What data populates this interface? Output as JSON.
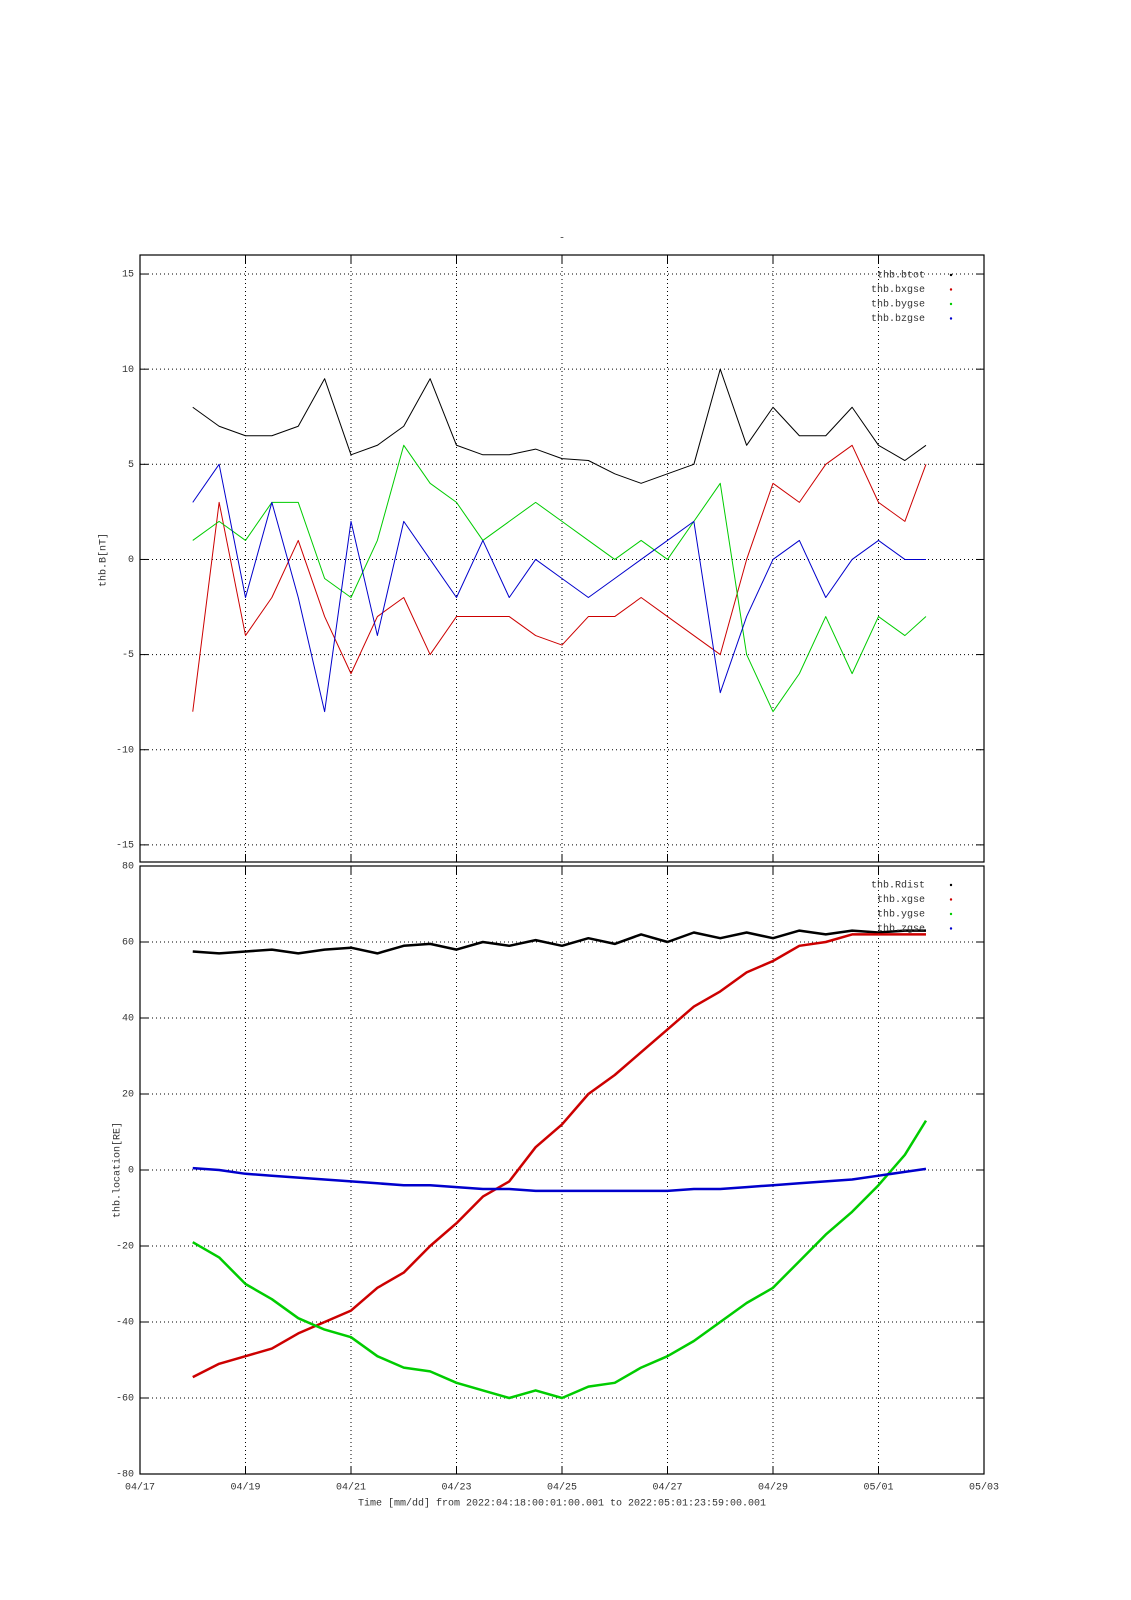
{
  "chart_data": [
    {
      "type": "line",
      "title": "-",
      "y_label": "thb.B[nT]",
      "x": [
        1,
        1.5,
        2,
        2.5,
        3,
        3.5,
        4,
        4.5,
        5,
        5.5,
        6,
        6.5,
        7,
        7.5,
        8,
        8.5,
        9,
        9.5,
        10,
        10.5,
        11,
        11.5,
        12,
        12.5,
        13,
        13.5,
        14,
        14.5,
        14.9
      ],
      "xlim": [
        0,
        16
      ],
      "xticks": [
        0,
        2,
        4,
        6,
        8,
        10,
        12,
        14,
        16
      ],
      "ylim": [
        -15.9,
        16
      ],
      "yticks": [
        -15,
        -10,
        -5,
        0,
        5,
        10,
        15
      ],
      "grid": true,
      "legend": "top-right",
      "series": [
        {
          "name": "thb.btot",
          "color": "#000000",
          "values": [
            8,
            7,
            6.5,
            6.5,
            7,
            9.5,
            5.5,
            6,
            7,
            9.5,
            6,
            5.5,
            5.5,
            5.8,
            5.3,
            5.2,
            4.5,
            4,
            4.5,
            5,
            10,
            6,
            8,
            6.5,
            6.5,
            8,
            6,
            5.2,
            6
          ]
        },
        {
          "name": "thb.bxgse",
          "color": "#cc0000",
          "values": [
            -8,
            3,
            -4,
            -2,
            1,
            -3,
            -6,
            -3,
            -2,
            -5,
            -3,
            -3,
            -3,
            -4,
            -4.5,
            -3,
            -3,
            -2,
            -3,
            -4,
            -5,
            0,
            4,
            3,
            5,
            6,
            3,
            2,
            5
          ]
        },
        {
          "name": "thb.bygse",
          "color": "#00cc00",
          "values": [
            1,
            2,
            1,
            3,
            3,
            -1,
            -2,
            1,
            6,
            4,
            3,
            1,
            2,
            3,
            2,
            1,
            0,
            1,
            0,
            2,
            4,
            -5,
            -8,
            -6,
            -3,
            -6,
            -3,
            -4,
            -3
          ]
        },
        {
          "name": "thb.bzgse",
          "color": "#0000cc",
          "values": [
            3,
            5,
            -2,
            3,
            -2,
            -8,
            2,
            -4,
            2,
            0,
            -2,
            1,
            -2,
            0,
            -1,
            -2,
            -1,
            0,
            1,
            2,
            -7,
            -3,
            0,
            1,
            -2,
            0,
            1,
            0,
            0
          ]
        }
      ]
    },
    {
      "type": "line",
      "y_label": "thb.location[RE]",
      "x_label": "Time [mm/dd]  from 2022:04:18:00:01:00.001  to  2022:05:01:23:59:00.001",
      "x": [
        1,
        1.5,
        2,
        2.5,
        3,
        3.5,
        4,
        4.5,
        5,
        5.5,
        6,
        6.5,
        7,
        7.5,
        8,
        8.5,
        9,
        9.5,
        10,
        10.5,
        11,
        11.5,
        12,
        12.5,
        13,
        13.5,
        14,
        14.5,
        14.9
      ],
      "xlim": [
        0,
        16
      ],
      "xticks": [
        {
          "value": 0,
          "label": "04/17"
        },
        {
          "value": 2,
          "label": "04/19"
        },
        {
          "value": 4,
          "label": "04/21"
        },
        {
          "value": 6,
          "label": "04/23"
        },
        {
          "value": 8,
          "label": "04/25"
        },
        {
          "value": 10,
          "label": "04/27"
        },
        {
          "value": 12,
          "label": "04/29"
        },
        {
          "value": 14,
          "label": "05/01"
        },
        {
          "value": 16,
          "label": "05/03"
        }
      ],
      "ylim": [
        -80,
        80
      ],
      "yticks": [
        -80,
        -60,
        -40,
        -20,
        0,
        20,
        40,
        60,
        80
      ],
      "grid": true,
      "legend": "top-right",
      "series": [
        {
          "name": "thb.Rdist",
          "color": "#000000",
          "values": [
            57.5,
            57,
            57.5,
            58,
            57,
            58,
            58.5,
            57,
            59,
            59.5,
            58,
            60,
            59,
            60.5,
            59,
            61,
            59.5,
            62,
            60,
            62.5,
            61,
            62.5,
            61,
            63,
            62,
            63,
            62.5,
            63,
            63
          ]
        },
        {
          "name": "thb.xgse",
          "color": "#cc0000",
          "values": [
            -54.5,
            -51,
            -49,
            -47,
            -43,
            -40,
            -37,
            -31,
            -27,
            -20,
            -14,
            -7,
            -3,
            6,
            12,
            20,
            25,
            31,
            37,
            43,
            47,
            52,
            55,
            59,
            60,
            62,
            62,
            62,
            62
          ]
        },
        {
          "name": "thb.ygse",
          "color": "#00cc00",
          "values": [
            -19,
            -23,
            -30,
            -34,
            -39,
            -42,
            -44,
            -49,
            -52,
            -53,
            -56,
            -58,
            -60,
            -58,
            -60,
            -57,
            -56,
            -52,
            -49,
            -45,
            -40,
            -35,
            -31,
            -24,
            -17,
            -11,
            -4,
            4,
            13
          ]
        },
        {
          "name": "thb.zgse",
          "color": "#0000cc",
          "values": [
            0.5,
            0,
            -1,
            -1.5,
            -2,
            -2.5,
            -3,
            -3.5,
            -4,
            -4,
            -4.5,
            -5,
            -5,
            -5.5,
            -5.5,
            -5.5,
            -5.5,
            -5.5,
            -5.5,
            -5,
            -5,
            -4.5,
            -4,
            -3.5,
            -3,
            -2.5,
            -1.5,
            -0.5,
            0.3
          ]
        }
      ]
    }
  ]
}
